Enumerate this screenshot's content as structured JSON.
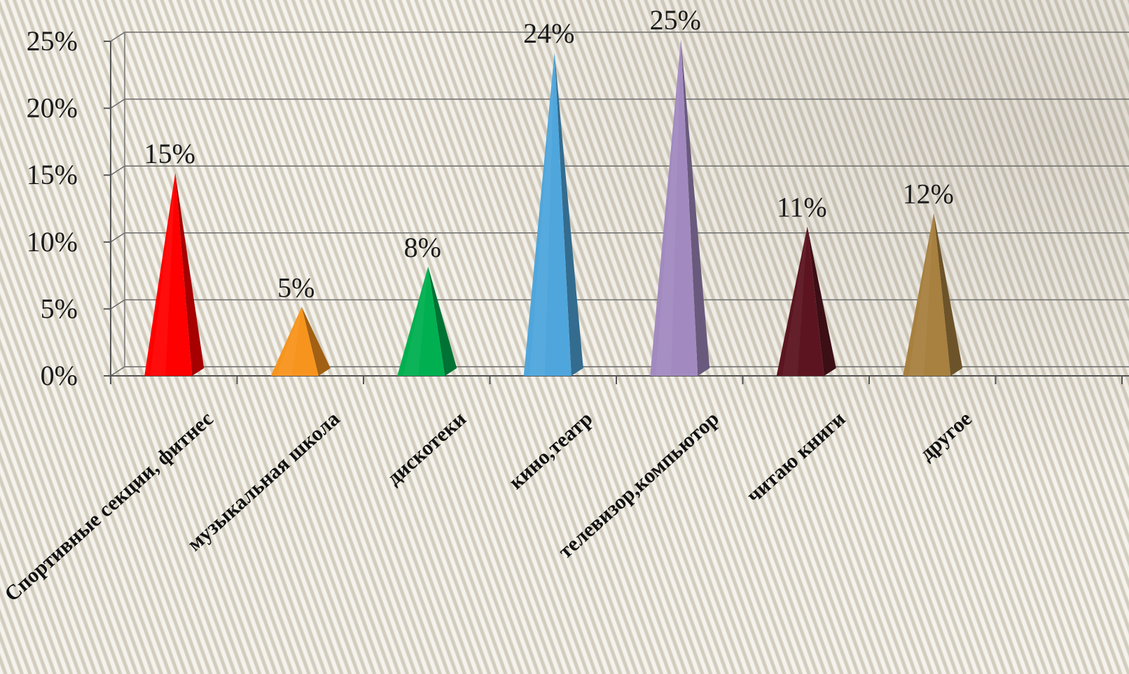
{
  "chart_data": {
    "type": "bar",
    "categories": [
      "Спортивные секции, фитнес",
      "музыкальная школа",
      "дискотеки",
      "кино,театр",
      "телевизор,компьютор",
      "читаю книги",
      "другое"
    ],
    "values": [
      15,
      5,
      8,
      24,
      25,
      11,
      12
    ],
    "data_labels": [
      "15%",
      "5%",
      "8%",
      "24%",
      "25%",
      "11%",
      "12%"
    ],
    "colors": [
      "#ff0000",
      "#f7941d",
      "#00b050",
      "#4fa6dc",
      "#a28ac0",
      "#5c1520",
      "#a8803f"
    ],
    "ylim": [
      0,
      25
    ],
    "yticks": [
      0,
      5,
      10,
      15,
      20,
      25
    ],
    "ytick_labels": [
      "0%",
      "5%",
      "10%",
      "15%",
      "20%",
      "25%"
    ],
    "bar_shape": "3d-pyramid",
    "grid": true,
    "legend": "none"
  }
}
